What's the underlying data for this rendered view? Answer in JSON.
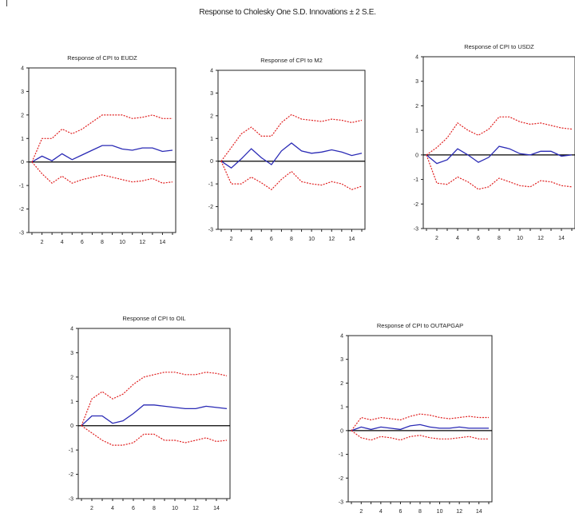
{
  "title": "Response to Cholesky One S.D. Innovations ± 2 S.E.",
  "colors": {
    "response": "#2a2ab5",
    "bands": "#e02020",
    "axis": "#000000",
    "frame": "#222222"
  },
  "chart_data": [
    {
      "type": "line",
      "title": "Response of CPI to EUDZ",
      "x": [
        1,
        2,
        3,
        4,
        5,
        6,
        7,
        8,
        9,
        10,
        11,
        12,
        13,
        14,
        15
      ],
      "xticks": [
        2,
        4,
        6,
        8,
        10,
        12,
        14
      ],
      "yticks": [
        -3,
        -2,
        -1,
        0,
        1,
        2,
        3,
        4
      ],
      "ylim": [
        -3,
        4
      ],
      "series": [
        {
          "role": "response",
          "values": [
            0,
            0.25,
            0.05,
            0.35,
            0.1,
            0.3,
            0.5,
            0.7,
            0.7,
            0.55,
            0.5,
            0.6,
            0.6,
            0.45,
            0.5
          ]
        },
        {
          "role": "upper",
          "values": [
            0,
            1.0,
            1.0,
            1.4,
            1.2,
            1.4,
            1.7,
            2.0,
            2.0,
            2.0,
            1.85,
            1.9,
            2.0,
            1.85,
            1.85
          ]
        },
        {
          "role": "lower",
          "values": [
            0,
            -0.5,
            -0.9,
            -0.6,
            -0.9,
            -0.75,
            -0.65,
            -0.55,
            -0.65,
            -0.75,
            -0.85,
            -0.8,
            -0.7,
            -0.9,
            -0.85
          ]
        }
      ]
    },
    {
      "type": "line",
      "title": "Response of CPI to M2",
      "x": [
        1,
        2,
        3,
        4,
        5,
        6,
        7,
        8,
        9,
        10,
        11,
        12,
        13,
        14,
        15
      ],
      "xticks": [
        2,
        4,
        6,
        8,
        10,
        12,
        14
      ],
      "yticks": [
        -3,
        -2,
        -1,
        0,
        1,
        2,
        3,
        4
      ],
      "ylim": [
        -3,
        4
      ],
      "series": [
        {
          "role": "response",
          "values": [
            0,
            -0.3,
            0.1,
            0.55,
            0.15,
            -0.15,
            0.45,
            0.8,
            0.45,
            0.35,
            0.4,
            0.5,
            0.4,
            0.25,
            0.35
          ]
        },
        {
          "role": "upper",
          "values": [
            0,
            0.6,
            1.2,
            1.5,
            1.1,
            1.1,
            1.7,
            2.05,
            1.85,
            1.8,
            1.75,
            1.85,
            1.8,
            1.7,
            1.8
          ]
        },
        {
          "role": "lower",
          "values": [
            0,
            -1.0,
            -1.0,
            -0.7,
            -0.95,
            -1.25,
            -0.8,
            -0.45,
            -0.9,
            -1.0,
            -1.05,
            -0.9,
            -1.0,
            -1.25,
            -1.1
          ]
        }
      ]
    },
    {
      "type": "line",
      "title": "Response of CPI to USDZ",
      "x": [
        1,
        2,
        3,
        4,
        5,
        6,
        7,
        8,
        9,
        10,
        11,
        12,
        13,
        14,
        15
      ],
      "xticks": [
        2,
        4,
        6,
        8,
        10,
        12,
        14
      ],
      "yticks": [
        -3,
        -2,
        -1,
        0,
        1,
        2,
        3,
        4
      ],
      "ylim": [
        -3,
        4
      ],
      "series": [
        {
          "role": "response",
          "values": [
            0,
            -0.35,
            -0.2,
            0.25,
            0.0,
            -0.3,
            -0.1,
            0.35,
            0.25,
            0.05,
            0.0,
            0.15,
            0.15,
            -0.05,
            0.0
          ]
        },
        {
          "role": "upper",
          "values": [
            0,
            0.3,
            0.7,
            1.3,
            1.0,
            0.8,
            1.05,
            1.55,
            1.55,
            1.35,
            1.25,
            1.3,
            1.2,
            1.1,
            1.05
          ]
        },
        {
          "role": "lower",
          "values": [
            0,
            -1.15,
            -1.2,
            -0.9,
            -1.1,
            -1.4,
            -1.3,
            -0.95,
            -1.1,
            -1.25,
            -1.3,
            -1.05,
            -1.1,
            -1.25,
            -1.3
          ]
        }
      ]
    },
    {
      "type": "line",
      "title": "Response of CPI to OIL",
      "x": [
        1,
        2,
        3,
        4,
        5,
        6,
        7,
        8,
        9,
        10,
        11,
        12,
        13,
        14,
        15
      ],
      "xticks": [
        2,
        4,
        6,
        8,
        10,
        12,
        14
      ],
      "yticks": [
        -3,
        -2,
        -1,
        0,
        1,
        2,
        3,
        4
      ],
      "ylim": [
        -3,
        4
      ],
      "series": [
        {
          "role": "response",
          "values": [
            0,
            0.4,
            0.4,
            0.1,
            0.2,
            0.5,
            0.85,
            0.85,
            0.8,
            0.75,
            0.7,
            0.7,
            0.8,
            0.75,
            0.7
          ]
        },
        {
          "role": "upper",
          "values": [
            0,
            1.1,
            1.4,
            1.1,
            1.3,
            1.7,
            2.0,
            2.1,
            2.2,
            2.2,
            2.1,
            2.1,
            2.2,
            2.15,
            2.05
          ]
        },
        {
          "role": "lower",
          "values": [
            0,
            -0.3,
            -0.6,
            -0.8,
            -0.8,
            -0.7,
            -0.35,
            -0.35,
            -0.6,
            -0.6,
            -0.7,
            -0.6,
            -0.5,
            -0.65,
            -0.6
          ]
        }
      ]
    },
    {
      "type": "line",
      "title": "Response of CPI to OUTAPGAP",
      "x": [
        1,
        2,
        3,
        4,
        5,
        6,
        7,
        8,
        9,
        10,
        11,
        12,
        13,
        14,
        15
      ],
      "xticks": [
        2,
        4,
        6,
        8,
        10,
        12,
        14
      ],
      "yticks": [
        -3,
        -2,
        -1,
        0,
        1,
        2,
        3,
        4
      ],
      "ylim": [
        -3,
        4
      ],
      "series": [
        {
          "role": "response",
          "values": [
            0,
            0.15,
            0.05,
            0.15,
            0.1,
            0.05,
            0.2,
            0.25,
            0.15,
            0.1,
            0.1,
            0.15,
            0.1,
            0.1,
            0.1
          ]
        },
        {
          "role": "upper",
          "values": [
            0,
            0.55,
            0.45,
            0.55,
            0.5,
            0.45,
            0.6,
            0.7,
            0.65,
            0.55,
            0.5,
            0.55,
            0.6,
            0.55,
            0.55
          ]
        },
        {
          "role": "lower",
          "values": [
            0,
            -0.3,
            -0.4,
            -0.25,
            -0.3,
            -0.4,
            -0.25,
            -0.2,
            -0.3,
            -0.35,
            -0.35,
            -0.3,
            -0.25,
            -0.35,
            -0.35
          ]
        }
      ]
    }
  ]
}
